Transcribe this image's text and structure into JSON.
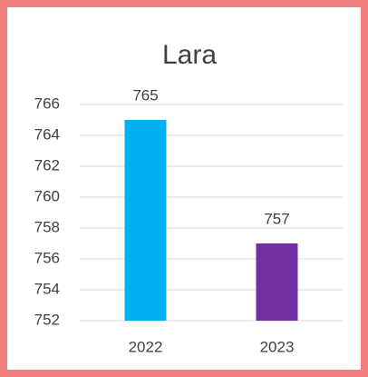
{
  "chart_data": {
    "type": "bar",
    "title": "Lara",
    "categories": [
      "2022",
      "2023"
    ],
    "values": [
      765,
      757
    ],
    "colors": [
      "#00b0f0",
      "#7030a0"
    ],
    "ylim": [
      752,
      766
    ],
    "yticks": [
      752,
      754,
      756,
      758,
      760,
      762,
      764,
      766
    ],
    "grid": true
  }
}
